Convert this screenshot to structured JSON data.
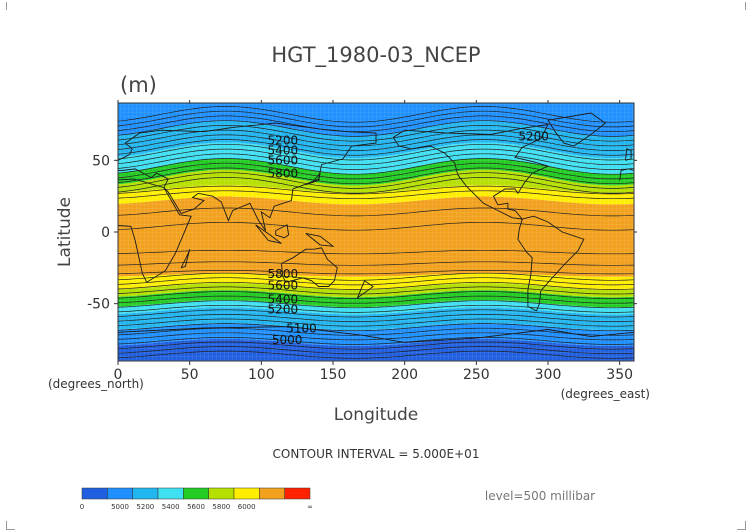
{
  "chart_data": {
    "type": "heatmap",
    "title": "HGT_1980-03_NCEP",
    "units": "(m)",
    "xlabel": "Longitude",
    "ylabel": "Latitude",
    "x_unit_note": "(degrees_east)",
    "y_unit_note": "(degrees_north)",
    "xlim": [
      0,
      360
    ],
    "ylim": [
      -90,
      90
    ],
    "x_ticks": [
      0,
      50,
      100,
      150,
      200,
      250,
      300,
      350
    ],
    "y_ticks": [
      50,
      0,
      -50
    ],
    "contour_interval_text": "CONTOUR INTERVAL = 5.000E+01",
    "level_text": "level=500 millibar",
    "contour_labels": [
      {
        "text": "5200",
        "lon": 115,
        "lat": 61
      },
      {
        "text": "5200",
        "lon": 290,
        "lat": 64
      },
      {
        "text": "5400",
        "lon": 115,
        "lat": 54
      },
      {
        "text": "5600",
        "lon": 115,
        "lat": 47
      },
      {
        "text": "5800",
        "lon": 115,
        "lat": 38
      },
      {
        "text": "5800",
        "lon": 115,
        "lat": -32
      },
      {
        "text": "5600",
        "lon": 115,
        "lat": -40
      },
      {
        "text": "5400",
        "lon": 115,
        "lat": -50
      },
      {
        "text": "5200",
        "lon": 115,
        "lat": -57
      },
      {
        "text": "5100",
        "lon": 128,
        "lat": -70
      },
      {
        "text": "5000",
        "lon": 118,
        "lat": -78
      }
    ],
    "bands_south_to_north": [
      {
        "lat_min": -90,
        "lat_max": -77,
        "color": "#1f5fe0"
      },
      {
        "lat_min": -77,
        "lat_max": -66,
        "color": "#1e90ff"
      },
      {
        "lat_min": -66,
        "lat_max": -55,
        "color": "#22b6f0"
      },
      {
        "lat_min": -55,
        "lat_max": -50,
        "color": "#3fe0f2"
      },
      {
        "lat_min": -50,
        "lat_max": -43,
        "color": "#22cc22"
      },
      {
        "lat_min": -43,
        "lat_max": -38,
        "color": "#b6e000"
      },
      {
        "lat_min": -38,
        "lat_max": -30,
        "color": "#ffee00"
      },
      {
        "lat_min": -30,
        "lat_max": 22,
        "color": "#f2a11e"
      },
      {
        "lat_min": 22,
        "lat_max": 30,
        "color": "#ffee00"
      },
      {
        "lat_min": 30,
        "lat_max": 38,
        "color": "#b6e000"
      },
      {
        "lat_min": 38,
        "lat_max": 46,
        "color": "#22cc22"
      },
      {
        "lat_min": 46,
        "lat_max": 57,
        "color": "#3fe0f2"
      },
      {
        "lat_min": 57,
        "lat_max": 72,
        "color": "#22b6f0"
      },
      {
        "lat_min": 72,
        "lat_max": 90,
        "color": "#1e90ff"
      }
    ],
    "colorbar": {
      "colors": [
        "#1f5fe0",
        "#1e90ff",
        "#22b6f0",
        "#3fe0f2",
        "#22cc22",
        "#b6e000",
        "#ffee00",
        "#f2a11e",
        "#ff2200"
      ],
      "labels": [
        "0",
        "5000",
        "5200",
        "5400",
        "5600",
        "5800",
        "6000",
        "∞"
      ]
    }
  }
}
